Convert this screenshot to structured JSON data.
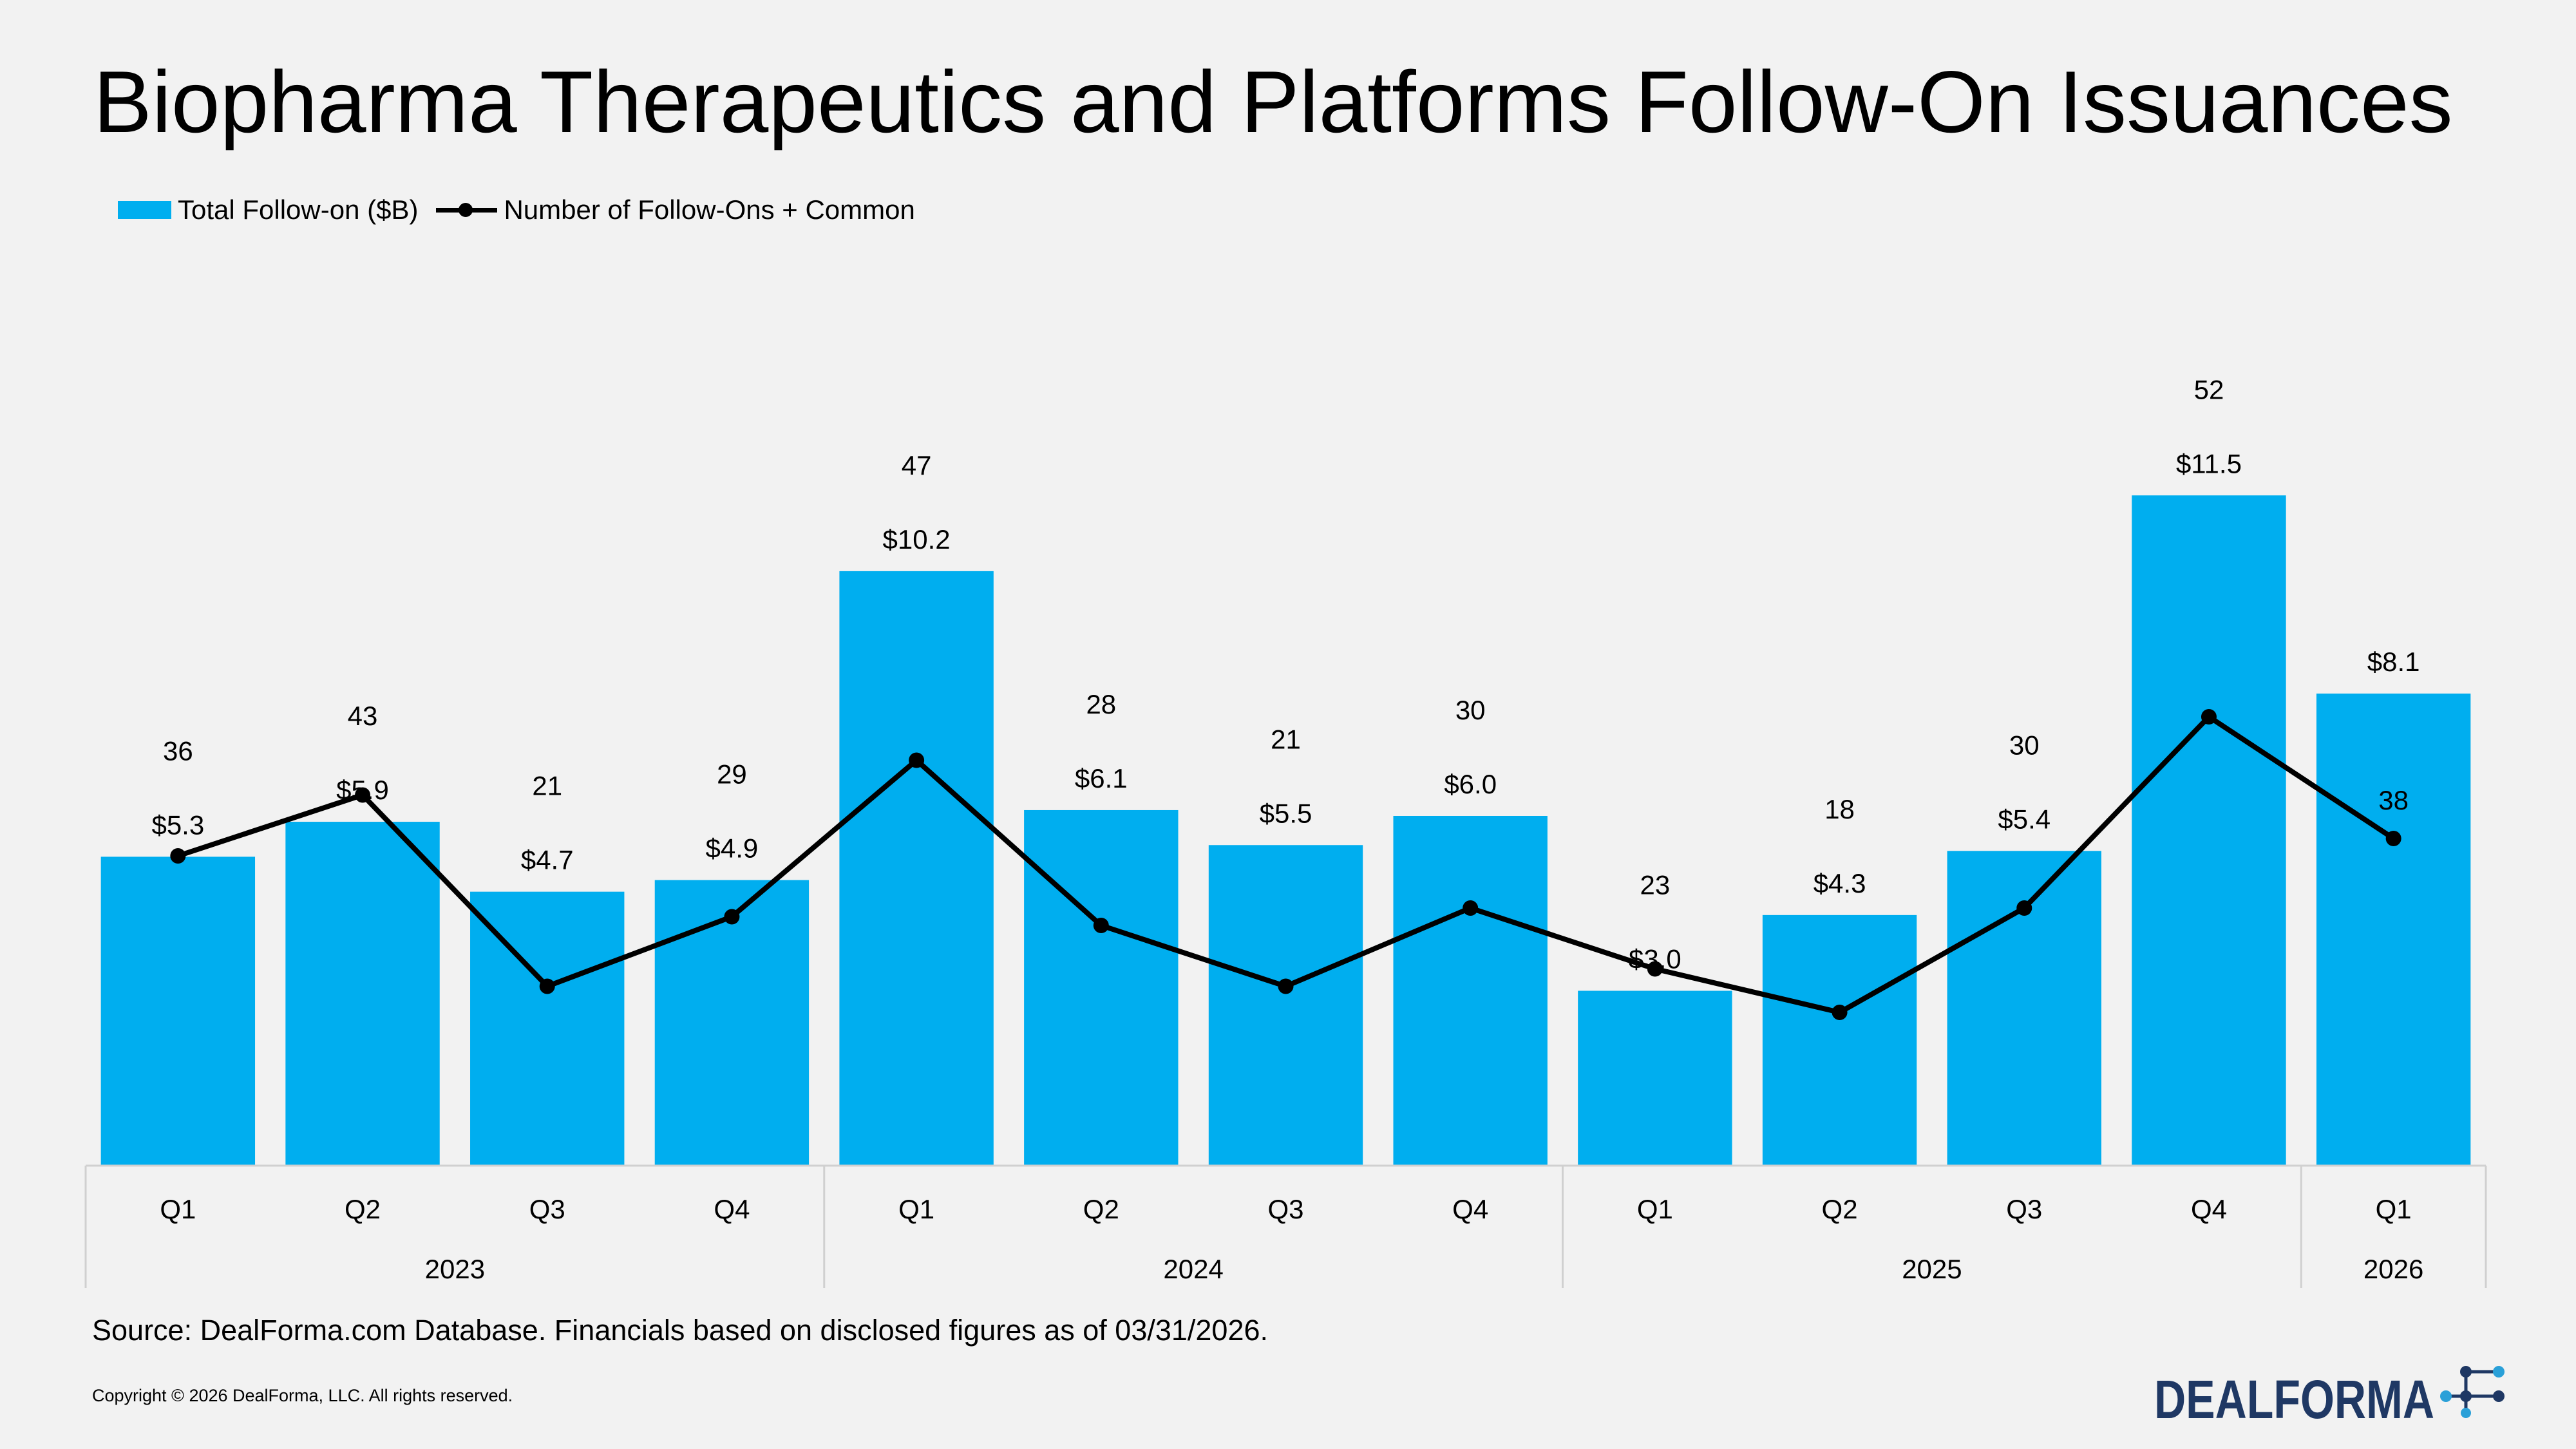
{
  "title": "Biopharma Therapeutics and Platforms Follow-On Issuances",
  "source": "Source: DealForma.com Database. Financials based on disclosed figures as of 03/31/2026.",
  "copyright": "Copyright © 2026 DealForma, LLC. All rights reserved.",
  "logo": {
    "text": "DEALFORMA"
  },
  "colors": {
    "bar": "#00aeef",
    "line": "#000000",
    "background": "#f2f2f2"
  },
  "chart_data": {
    "type": "bar",
    "categories": [
      "Q1",
      "Q2",
      "Q3",
      "Q4",
      "Q1",
      "Q2",
      "Q3",
      "Q4",
      "Q1",
      "Q2",
      "Q3",
      "Q4",
      "Q1"
    ],
    "groups": [
      {
        "label": "2023",
        "count": 4
      },
      {
        "label": "2024",
        "count": 4
      },
      {
        "label": "2025",
        "count": 4
      },
      {
        "label": "2026",
        "count": 1
      }
    ],
    "series": [
      {
        "name": "Total Follow-on ($B)",
        "type": "bar",
        "values": [
          5.3,
          5.9,
          4.7,
          4.9,
          10.2,
          6.1,
          5.5,
          6.0,
          3.0,
          4.3,
          5.4,
          11.5,
          8.1
        ],
        "labels": [
          "$5.3",
          "$5.9",
          "$4.7",
          "$4.9",
          "$10.2",
          "$6.1",
          "$5.5",
          "$6.0",
          "$3.0",
          "$4.3",
          "$5.4",
          "$11.5",
          "$8.1"
        ]
      },
      {
        "name": "Number of Follow-Ons + Common",
        "type": "line",
        "values": [
          36,
          43,
          21,
          29,
          47,
          28,
          21,
          30,
          23,
          18,
          30,
          52,
          38
        ],
        "labels": [
          "36",
          "43",
          "21",
          "29",
          "47",
          "28",
          "21",
          "30",
          "23",
          "18",
          "30",
          "52",
          "38"
        ]
      }
    ],
    "legend": "top-left",
    "grid": false
  }
}
